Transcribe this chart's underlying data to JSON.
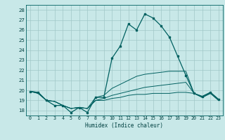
{
  "xlabel": "Humidex (Indice chaleur)",
  "ylabel": "",
  "background_color": "#c8e8e8",
  "grid_color": "#a0c8c8",
  "line_color": "#006060",
  "text_color": "#004040",
  "x": [
    0,
    1,
    2,
    3,
    4,
    5,
    6,
    7,
    8,
    9,
    10,
    11,
    12,
    13,
    14,
    15,
    16,
    17,
    18,
    19,
    20,
    21,
    22,
    23
  ],
  "curve1": [
    19.9,
    19.8,
    19.0,
    18.5,
    18.5,
    17.8,
    18.3,
    17.8,
    19.3,
    19.3,
    23.2,
    24.4,
    26.6,
    26.0,
    27.6,
    27.2,
    26.4,
    25.3,
    23.4,
    21.5,
    19.7,
    19.4,
    19.8,
    19.1
  ],
  "curve2": [
    19.9,
    19.8,
    19.0,
    18.9,
    18.5,
    18.2,
    18.3,
    18.2,
    19.3,
    19.5,
    20.2,
    20.6,
    21.0,
    21.4,
    21.6,
    21.7,
    21.8,
    21.9,
    21.9,
    21.9,
    19.7,
    19.4,
    19.8,
    19.1
  ],
  "curve3": [
    19.9,
    19.7,
    19.0,
    18.9,
    18.5,
    18.2,
    18.3,
    18.2,
    19.0,
    19.2,
    19.5,
    19.7,
    19.9,
    20.1,
    20.3,
    20.4,
    20.5,
    20.6,
    20.7,
    20.8,
    19.7,
    19.3,
    19.7,
    19.0
  ],
  "curve4": [
    19.9,
    19.7,
    19.0,
    18.9,
    18.5,
    18.2,
    18.3,
    18.2,
    19.0,
    19.0,
    19.2,
    19.3,
    19.5,
    19.6,
    19.6,
    19.7,
    19.7,
    19.7,
    19.8,
    19.8,
    19.7,
    19.3,
    19.7,
    19.0
  ],
  "ylim": [
    17.5,
    28.5
  ],
  "yticks": [
    18,
    19,
    20,
    21,
    22,
    23,
    24,
    25,
    26,
    27,
    28
  ],
  "xlim": [
    -0.5,
    23.5
  ],
  "xticks": [
    0,
    1,
    2,
    3,
    4,
    5,
    6,
    7,
    8,
    9,
    10,
    11,
    12,
    13,
    14,
    15,
    16,
    17,
    18,
    19,
    20,
    21,
    22,
    23
  ]
}
